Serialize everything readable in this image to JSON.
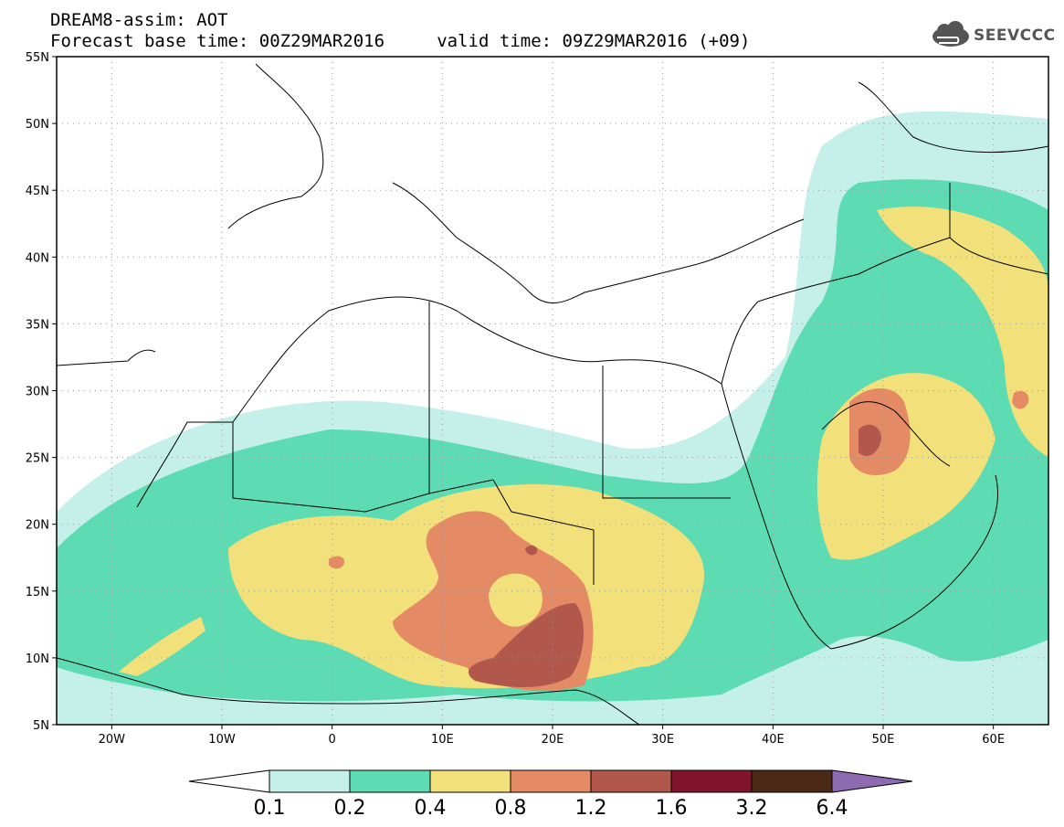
{
  "title": {
    "line1": "DREAM8-assim: AOT",
    "line2": "Forecast base time: 00Z29MAR2016     valid time: 09Z29MAR2016 (+09)"
  },
  "logo": {
    "text": "SEEVCCC",
    "icon": "cloud-logo-icon"
  },
  "map": {
    "lon_range": [
      -25,
      65
    ],
    "lat_range": [
      5,
      55
    ],
    "grid": true,
    "lat_ticks": [
      "5N",
      "10N",
      "15N",
      "20N",
      "25N",
      "30N",
      "35N",
      "40N",
      "45N",
      "50N",
      "55N"
    ],
    "lon_ticks": [
      "20W",
      "10W",
      "0",
      "10E",
      "20E",
      "30E",
      "40E",
      "50E",
      "60E"
    ]
  },
  "colorbar": {
    "labels": [
      "0.1",
      "0.2",
      "0.4",
      "0.8",
      "1.2",
      "1.6",
      "3.2",
      "6.4"
    ],
    "colors": [
      "#c5efe9",
      "#5ddcb4",
      "#f2e07a",
      "#e48b65",
      "#b2574b",
      "#80142e",
      "#4a2a17",
      "#8e6bb0"
    ]
  }
}
